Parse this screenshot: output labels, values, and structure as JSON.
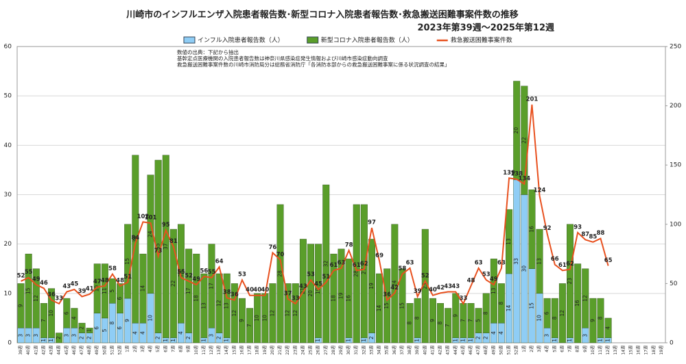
{
  "chart_data": {
    "type": "bar",
    "title": "川崎市のインフルエンザ入院患者報告数･新型コロナ入院患者報告数･救急搬送困難事案件数の推移",
    "subtitle": "2023年第39週～2025年第12週",
    "annotations": [
      "数値の出典：下記から抽出",
      "基幹定点医療機関の入院患者報告数は神奈川県感染症発生情報および川崎市感染症動向調査",
      "救急搬送困難事案件数の川崎市消防局分は総務省消防庁「各消防本部からの救急搬送困難事案に係る状況調査の結果」"
    ],
    "categories": [
      "39週",
      "40週",
      "41週",
      "42週",
      "43週",
      "44週",
      "45週",
      "46週",
      "47週",
      "48週",
      "49週",
      "50週",
      "51週",
      "52週",
      "1週",
      "2週",
      "3週",
      "4週",
      "5週",
      "6週",
      "7週",
      "8週",
      "9週",
      "10週",
      "11週",
      "12週",
      "13週",
      "14週",
      "15週",
      "16週",
      "17週",
      "18週",
      "19週",
      "20週",
      "21週",
      "22週",
      "23週",
      "24週",
      "25週",
      "26週",
      "27週",
      "28週",
      "29週",
      "30週",
      "31週",
      "32週",
      "33週",
      "34週",
      "35週",
      "36週",
      "37週",
      "38週",
      "39週",
      "40週",
      "41週",
      "42週",
      "43週",
      "44週",
      "45週",
      "46週",
      "47週",
      "48週",
      "49週",
      "50週",
      "51週",
      "52週",
      "1週",
      "2週",
      "3週",
      "4週",
      "5週",
      "6週",
      "7週",
      "8週",
      "9週",
      "10週",
      "11週",
      "12週",
      "13週",
      "14週",
      "15週",
      "16週",
      "17週",
      "18週",
      "19週"
    ],
    "series": [
      {
        "name": "インフル入院患者報告数（人）",
        "color": "#8fcdf5",
        "stack": true,
        "values": [
          3,
          3,
          3,
          1,
          1,
          null,
          3,
          3,
          2,
          2,
          6,
          5,
          8,
          6,
          9,
          4,
          4,
          10,
          2,
          1,
          1,
          4,
          2,
          null,
          1,
          3,
          2,
          1,
          null,
          null,
          null,
          null,
          null,
          null,
          null,
          null,
          null,
          null,
          null,
          1,
          null,
          null,
          null,
          1,
          null,
          1,
          2,
          null,
          null,
          null,
          null,
          null,
          1,
          null,
          null,
          null,
          null,
          1,
          1,
          1,
          2,
          2,
          4,
          4,
          14,
          33,
          30,
          15,
          10,
          3,
          1,
          null,
          1,
          null,
          3,
          null,
          1,
          1,
          null,
          null,
          null,
          null,
          null,
          null,
          null
        ]
      },
      {
        "name": "新型コロナ入院患者報告数（人）",
        "color": "#5a9e2a",
        "stack": true,
        "values": [
          9,
          15,
          12,
          7,
          10,
          2,
          6,
          4,
          2,
          1,
          10,
          11,
          5,
          6,
          15,
          34,
          14,
          24,
          35,
          37,
          22,
          20,
          17,
          18,
          13,
          17,
          12,
          13,
          12,
          9,
          7,
          10,
          10,
          12,
          28,
          12,
          12,
          21,
          20,
          19,
          32,
          18,
          19,
          16,
          28,
          27,
          19,
          14,
          15,
          24,
          15,
          8,
          8,
          23,
          9,
          8,
          7,
          9,
          7,
          7,
          5,
          8,
          13,
          8,
          13,
          20,
          22,
          16,
          13,
          6,
          8,
          12,
          23,
          16,
          12,
          9,
          8,
          4,
          null,
          null,
          null,
          null,
          null,
          null,
          null
        ]
      },
      {
        "name": "救急搬送困難事案件数",
        "color": "#e8501e",
        "axis": "y2",
        "type": "line",
        "values": [
          52,
          55,
          49,
          46,
          36,
          33,
          43,
          45,
          39,
          41,
          47,
          48,
          58,
          48,
          51,
          84,
          102,
          101,
          73,
          95,
          81,
          55,
          52,
          49,
          56,
          55,
          64,
          38,
          36,
          53,
          40,
          40,
          40,
          76,
          70,
          37,
          33,
          43,
          53,
          45,
          51,
          61,
          63,
          78,
          61,
          62,
          97,
          69,
          36,
          42,
          58,
          63,
          39,
          52,
          40,
          42,
          43,
          43,
          33,
          48,
          63,
          53,
          49,
          63,
          139,
          138,
          134,
          201,
          124,
          92,
          66,
          61,
          62,
          93,
          87,
          85,
          88,
          65,
          null,
          null,
          null,
          null,
          null,
          null,
          null
        ]
      }
    ],
    "ylim": [
      0,
      60
    ],
    "yticks": [
      0,
      10,
      20,
      30,
      40,
      50,
      60
    ],
    "y2lim": [
      0,
      250
    ],
    "y2ticks": [
      0,
      50,
      100,
      150,
      200,
      250
    ],
    "grid": true
  }
}
